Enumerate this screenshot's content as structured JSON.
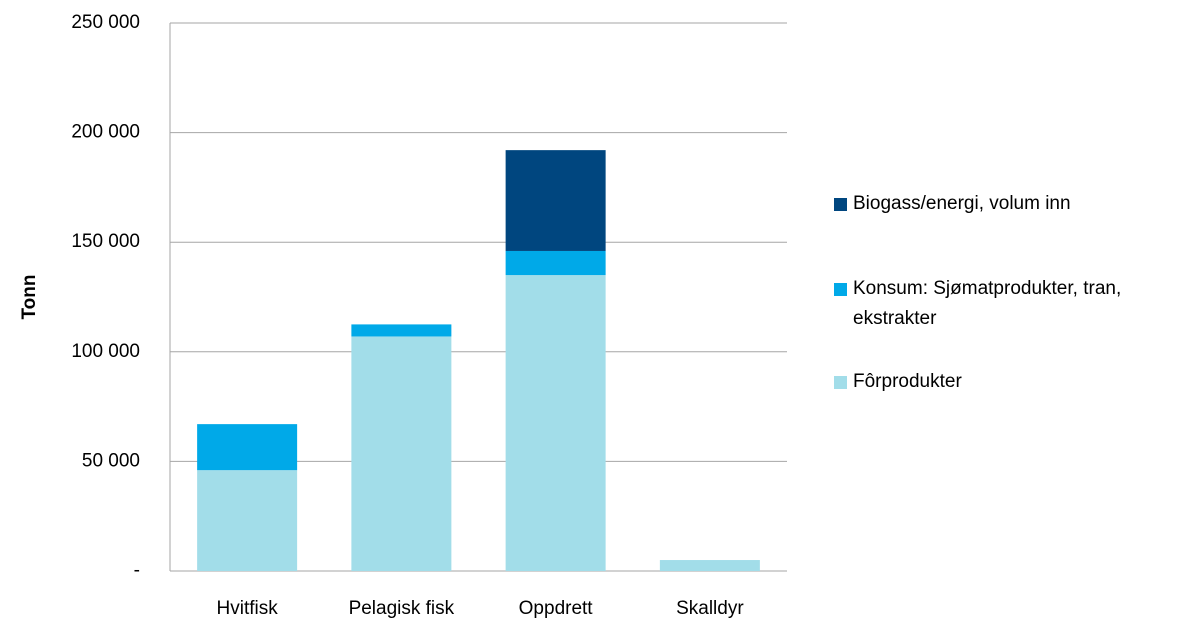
{
  "chart_data": {
    "type": "stacked_bar",
    "y_label": "Tonn",
    "categories": [
      "Hvitfisk",
      "Pelagisk fisk",
      "Oppdrett",
      "Skalldyr"
    ],
    "series": [
      {
        "name": "Fôrprodukter",
        "color": "#a2dde9",
        "values": [
          46000,
          107000,
          135000,
          5000
        ]
      },
      {
        "name": "Konsum: Sjømatprodukter, tran, ekstrakter",
        "color": "#00a9e8",
        "values": [
          21000,
          5500,
          11000,
          null
        ]
      },
      {
        "name": "Biogass/energi, volum inn",
        "color": "#00467f",
        "values": [
          null,
          null,
          46000,
          null
        ]
      }
    ],
    "ylim": [
      0,
      250000
    ],
    "yticks": [
      {
        "value": 0,
        "label": "-"
      },
      {
        "value": 50000,
        "label": "50 000"
      },
      {
        "value": 100000,
        "label": "100 000"
      },
      {
        "value": 150000,
        "label": "150 000"
      },
      {
        "value": 200000,
        "label": "200 000"
      },
      {
        "value": 250000,
        "label": "250 000"
      }
    ],
    "grid": true
  }
}
